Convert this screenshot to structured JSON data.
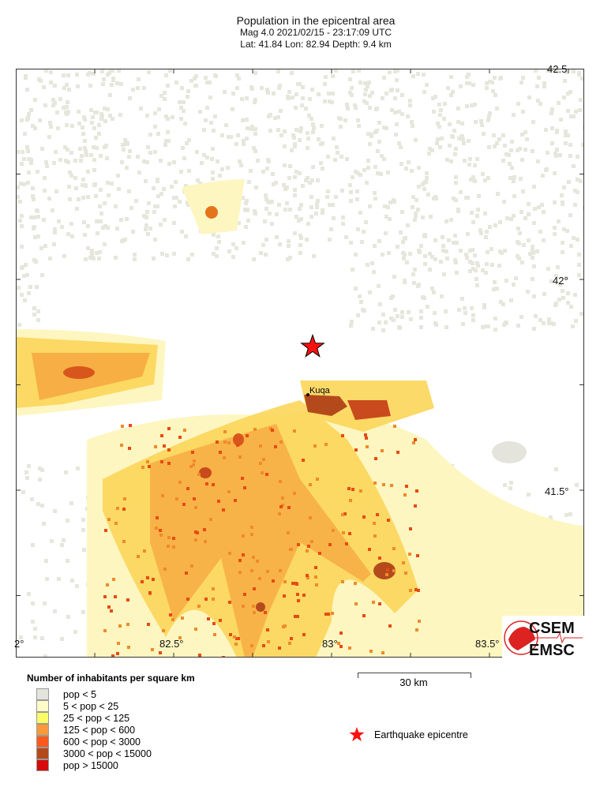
{
  "title": {
    "line1": "Population in the epicentral area",
    "line2": "Mag 4.0  2021/02/15 - 23:17:09 UTC",
    "line3": "Lat: 41.84    Lon:  82.94     Depth:  9.4 km"
  },
  "map": {
    "lon_range": [
      82.0,
      83.8
    ],
    "lat_range": [
      41.1,
      42.5
    ],
    "x_ticks": [
      "2°",
      "82.5°",
      "83°",
      "83.5°"
    ],
    "y_ticks": [
      "42.5",
      "42°",
      "41.5°"
    ],
    "epicentre": {
      "lat": 41.84,
      "lon": 82.94,
      "color": "#ff0000"
    },
    "city": {
      "name": "Kuqa",
      "lat": 41.73,
      "lon": 82.93
    }
  },
  "legend": {
    "title": "Number of inhabitants per square km",
    "items": [
      {
        "label": "pop < 5",
        "color": "#e4e4dc"
      },
      {
        "label": "5 < pop < 25",
        "color": "#fdfbc8"
      },
      {
        "label": "25 < pop < 125",
        "color": "#fbfb66"
      },
      {
        "label": "125 < pop < 600",
        "color": "#fb9a3a"
      },
      {
        "label": "600 < pop < 3000",
        "color": "#fb5a1c"
      },
      {
        "label": "3000 < pop < 15000",
        "color": "#b44a1c"
      },
      {
        "label": "pop > 15000",
        "color": "#d40c0c"
      }
    ]
  },
  "scale": {
    "label": "30 km"
  },
  "epicentre_legend": {
    "label": "Earthquake epicentre"
  },
  "logo": {
    "top": "CSEM",
    "bottom": "EMSC"
  }
}
